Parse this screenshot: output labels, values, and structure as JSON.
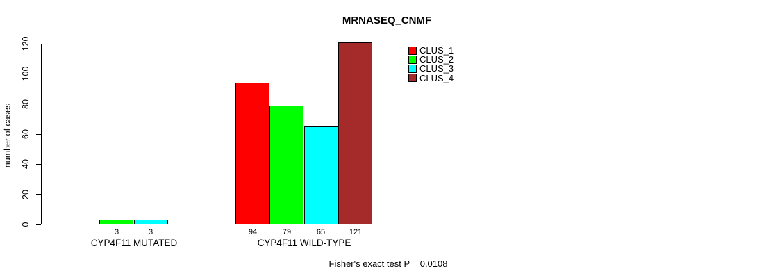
{
  "chart_data": {
    "type": "bar",
    "title": "MRNASEQ_CNMF",
    "ylabel": "number of cases",
    "xlabel": "",
    "categories": [
      "CYP4F11 MUTATED",
      "CYP4F11 WILD-TYPE"
    ],
    "series": [
      {
        "name": "CLUS_1",
        "color": "#FF0000",
        "values": [
          0,
          94
        ]
      },
      {
        "name": "CLUS_2",
        "color": "#00FF00",
        "values": [
          3,
          79
        ]
      },
      {
        "name": "CLUS_3",
        "color": "#00FFFF",
        "values": [
          3,
          65
        ]
      },
      {
        "name": "CLUS_4",
        "color": "#A52A2A",
        "values": [
          0,
          121
        ]
      }
    ],
    "yticks": [
      0,
      20,
      40,
      60,
      80,
      100,
      120
    ],
    "ylim": [
      0,
      125
    ],
    "grid": false,
    "legend_position": "top-right",
    "bar_value_labels_show_zero": false,
    "annotation": "Fisher's exact test P = 0.0108",
    "axis_color": "#000000",
    "text_color": "#000000",
    "background_color": "#FFFFFF"
  }
}
